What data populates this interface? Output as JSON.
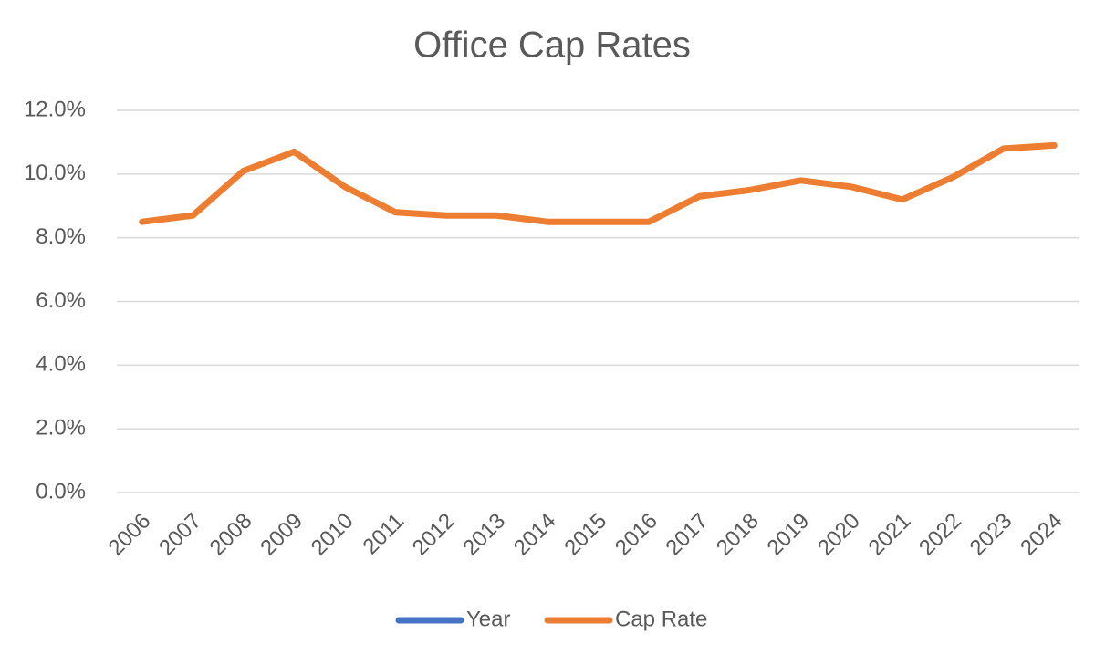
{
  "chart_data": {
    "type": "line",
    "title": "Office Cap Rates",
    "categories": [
      "2006",
      "2007",
      "2008",
      "2009",
      "2010",
      "2011",
      "2012",
      "2013",
      "2014",
      "2015",
      "2016",
      "2017",
      "2018",
      "2019",
      "2020",
      "2021",
      "2022",
      "2023",
      "2024"
    ],
    "series": [
      {
        "name": "Year",
        "color": "#4472c4",
        "values": [
          null,
          null,
          null,
          null,
          null,
          null,
          null,
          null,
          null,
          null,
          null,
          null,
          null,
          null,
          null,
          null,
          null,
          null,
          null
        ]
      },
      {
        "name": "Cap Rate",
        "color": "#ed7d31",
        "values": [
          8.5,
          8.7,
          10.1,
          10.7,
          9.6,
          8.8,
          8.7,
          8.7,
          8.5,
          8.5,
          8.5,
          9.3,
          9.5,
          9.8,
          9.6,
          9.2,
          9.9,
          10.8,
          10.9
        ]
      }
    ],
    "ylim": [
      0,
      12
    ],
    "yticks": [
      {
        "value": 0,
        "label": "0.0%"
      },
      {
        "value": 2,
        "label": "2.0%"
      },
      {
        "value": 4,
        "label": "4.0%"
      },
      {
        "value": 6,
        "label": "6.0%"
      },
      {
        "value": 8,
        "label": "8.0%"
      },
      {
        "value": 10,
        "label": "10.0%"
      },
      {
        "value": 12,
        "label": "12.0%"
      }
    ],
    "grid": true,
    "legend": "bottom"
  }
}
